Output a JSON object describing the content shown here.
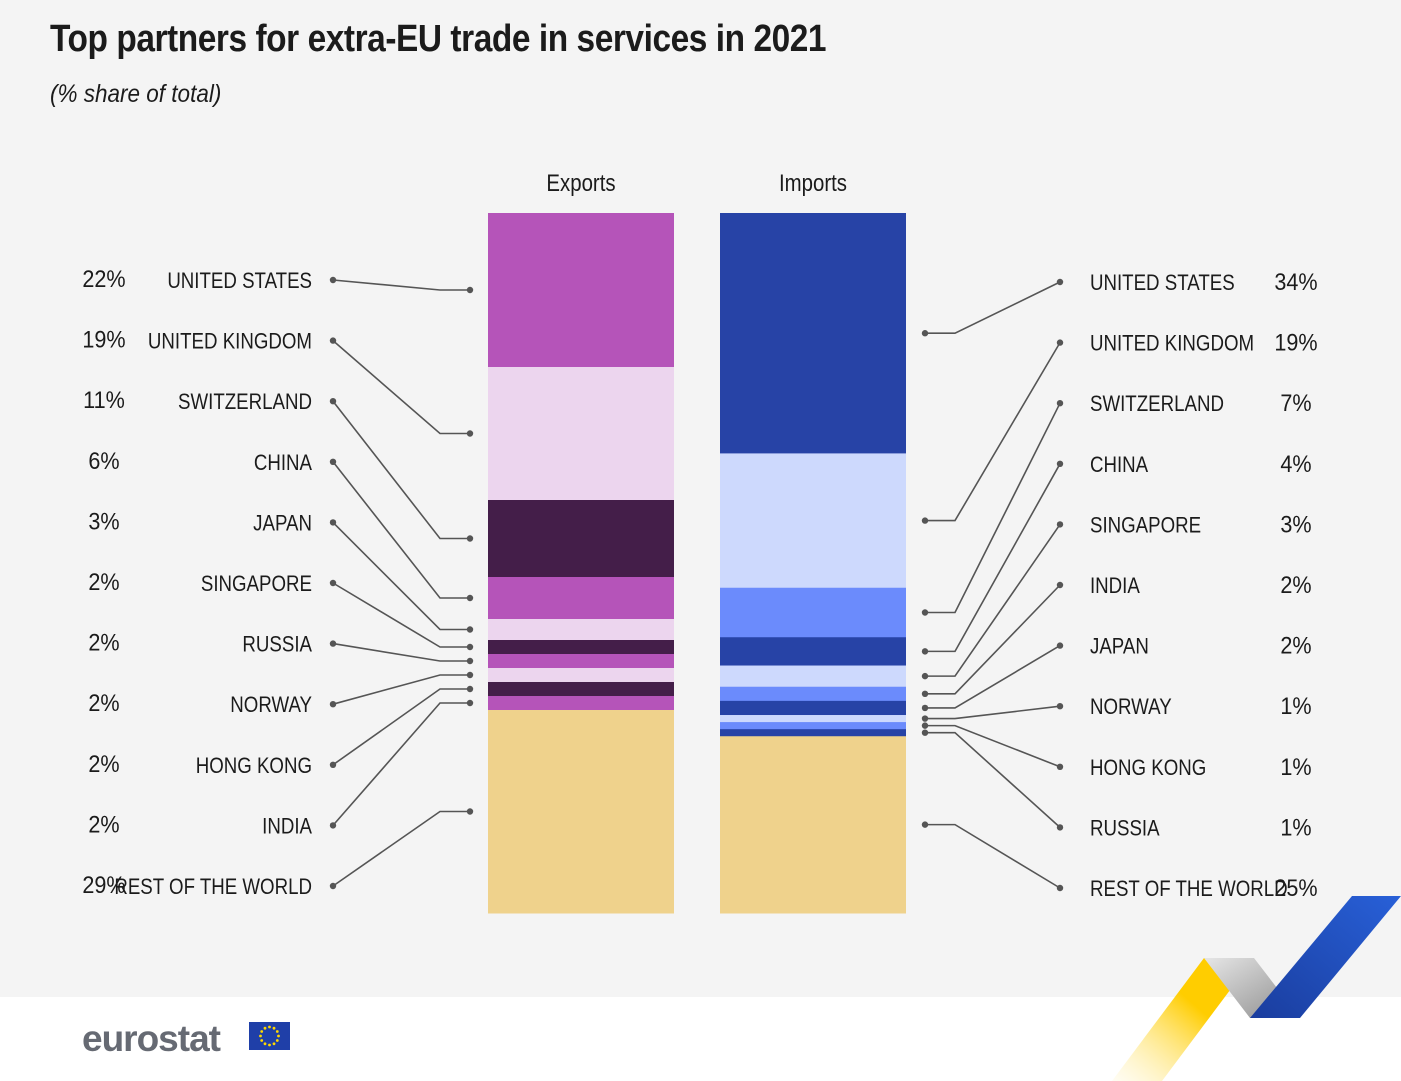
{
  "title": "Top partners for extra-EU trade in services in 2021",
  "subtitle": "(% share of total)",
  "brand": "eurostat",
  "colors": {
    "exports_palette": [
      "#b554b9",
      "#ecd5ee",
      "#441e49"
    ],
    "imports_palette": [
      "#2743a6",
      "#cdd9fd",
      "#6b8bfc"
    ],
    "rest_of_world": "#efd28c",
    "background": "#f4f4f4"
  },
  "chart_data": {
    "type": "bar",
    "stacked": true,
    "series": [
      {
        "name": "Exports",
        "points": [
          {
            "partner": "UNITED STATES",
            "value": 22,
            "label": "22%"
          },
          {
            "partner": "UNITED KINGDOM",
            "value": 19,
            "label": "19%"
          },
          {
            "partner": "SWITZERLAND",
            "value": 11,
            "label": "11%"
          },
          {
            "partner": "CHINA",
            "value": 6,
            "label": "6%"
          },
          {
            "partner": "JAPAN",
            "value": 3,
            "label": "3%"
          },
          {
            "partner": "SINGAPORE",
            "value": 2,
            "label": "2%"
          },
          {
            "partner": "RUSSIA",
            "value": 2,
            "label": "2%"
          },
          {
            "partner": "NORWAY",
            "value": 2,
            "label": "2%"
          },
          {
            "partner": "HONG KONG",
            "value": 2,
            "label": "2%"
          },
          {
            "partner": "INDIA",
            "value": 2,
            "label": "2%"
          },
          {
            "partner": "REST OF THE WORLD",
            "value": 29,
            "label": "29%"
          }
        ]
      },
      {
        "name": "Imports",
        "points": [
          {
            "partner": "UNITED STATES",
            "value": 34,
            "label": "34%"
          },
          {
            "partner": "UNITED KINGDOM",
            "value": 19,
            "label": "19%"
          },
          {
            "partner": "SWITZERLAND",
            "value": 7,
            "label": "7%"
          },
          {
            "partner": "CHINA",
            "value": 4,
            "label": "4%"
          },
          {
            "partner": "SINGAPORE",
            "value": 3,
            "label": "3%"
          },
          {
            "partner": "INDIA",
            "value": 2,
            "label": "2%"
          },
          {
            "partner": "JAPAN",
            "value": 2,
            "label": "2%"
          },
          {
            "partner": "NORWAY",
            "value": 1,
            "label": "1%"
          },
          {
            "partner": "HONG KONG",
            "value": 1,
            "label": "1%"
          },
          {
            "partner": "RUSSIA",
            "value": 1,
            "label": "1%"
          },
          {
            "partner": "REST OF THE WORLD",
            "value": 25,
            "label": "25%"
          }
        ]
      }
    ]
  }
}
